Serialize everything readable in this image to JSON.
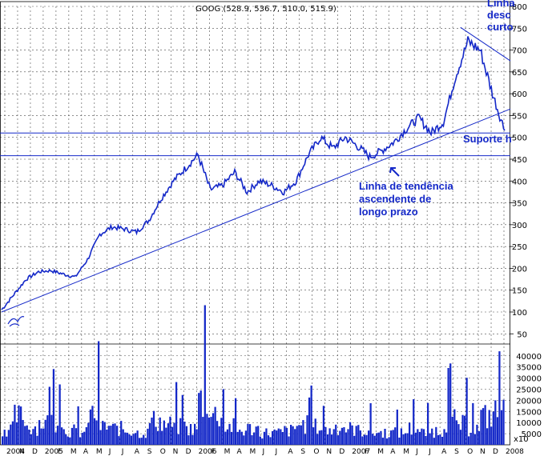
{
  "chart_data": {
    "type": "line",
    "title": "GOOG (528.9, 536.7, 510.0, 515.9)",
    "price_axis": {
      "ticks": [
        50,
        100,
        150,
        200,
        250,
        300,
        350,
        400,
        450,
        500,
        550,
        600,
        650,
        700,
        750,
        800
      ],
      "ylim": [
        40,
        800
      ]
    },
    "volume_axis": {
      "ticks": [
        5000,
        10000,
        15000,
        20000,
        25000,
        30000,
        35000,
        40000
      ],
      "ylim": [
        0,
        41000
      ],
      "bottom_label": "x10"
    },
    "x_labels": [
      "2004",
      "N",
      "D",
      "2005",
      "F",
      "M",
      "A",
      "M",
      "J",
      "J",
      "A",
      "S",
      "O",
      "N",
      "D",
      "2006",
      "F",
      "M",
      "A",
      "M",
      "J",
      "J",
      "A",
      "S",
      "O",
      "N",
      "D",
      "2007",
      "F",
      "M",
      "A",
      "M",
      "J",
      "J",
      "A",
      "S",
      "O",
      "N",
      "D",
      "2008"
    ],
    "price_series": [
      {
        "date": "2004-09",
        "close": 105
      },
      {
        "date": "2004-10",
        "close": 140
      },
      {
        "date": "2004-11",
        "close": 175
      },
      {
        "date": "2004-12",
        "close": 192
      },
      {
        "date": "2005-01",
        "close": 195
      },
      {
        "date": "2005-02",
        "close": 187
      },
      {
        "date": "2005-03",
        "close": 180
      },
      {
        "date": "2005-04",
        "close": 220
      },
      {
        "date": "2005-05",
        "close": 278
      },
      {
        "date": "2005-06",
        "close": 295
      },
      {
        "date": "2005-07",
        "close": 290
      },
      {
        "date": "2005-08",
        "close": 283
      },
      {
        "date": "2005-09",
        "close": 310
      },
      {
        "date": "2005-10",
        "close": 360
      },
      {
        "date": "2005-11",
        "close": 400
      },
      {
        "date": "2005-12",
        "close": 430
      },
      {
        "date": "2006-01",
        "close": 460
      },
      {
        "date": "2006-02",
        "close": 380
      },
      {
        "date": "2006-03",
        "close": 390
      },
      {
        "date": "2006-04",
        "close": 420
      },
      {
        "date": "2006-05",
        "close": 375
      },
      {
        "date": "2006-06",
        "close": 400
      },
      {
        "date": "2006-07",
        "close": 390
      },
      {
        "date": "2006-08",
        "close": 375
      },
      {
        "date": "2006-09",
        "close": 400
      },
      {
        "date": "2006-10",
        "close": 460
      },
      {
        "date": "2006-11",
        "close": 500
      },
      {
        "date": "2006-12",
        "close": 475
      },
      {
        "date": "2007-01",
        "close": 500
      },
      {
        "date": "2007-02",
        "close": 480
      },
      {
        "date": "2007-03",
        "close": 455
      },
      {
        "date": "2007-04",
        "close": 470
      },
      {
        "date": "2007-05",
        "close": 490
      },
      {
        "date": "2007-06",
        "close": 520
      },
      {
        "date": "2007-07",
        "close": 545
      },
      {
        "date": "2007-08",
        "close": 510
      },
      {
        "date": "2007-09",
        "close": 535
      },
      {
        "date": "2007-10",
        "close": 640
      },
      {
        "date": "2007-11",
        "close": 720
      },
      {
        "date": "2007-12",
        "close": 700
      },
      {
        "date": "2008-01",
        "close": 600
      },
      {
        "date": "2008-01-end",
        "close": 516
      }
    ],
    "volume_series": [
      8000,
      14000,
      9000,
      11000,
      12000,
      7000,
      6000,
      15000,
      9000,
      8000,
      7000,
      6000,
      12000,
      10000,
      9000,
      8000,
      22000,
      15000,
      9000,
      7000,
      8000,
      6000,
      6000,
      7000,
      10000,
      9000,
      7000,
      9000,
      8000,
      7000,
      6000,
      6000,
      6000,
      8000,
      6000,
      7000,
      12000,
      10000,
      8000,
      14000,
      16000
    ],
    "horizontal_lines": [
      510,
      458
    ],
    "trendline_up": {
      "from": {
        "date": "2004-09",
        "value": 100
      },
      "to": {
        "date": "2008-01",
        "value": 565
      }
    },
    "trendline_down": {
      "from": {
        "date": "2007-10",
        "value": 752
      },
      "to": {
        "date": "2008-01",
        "value": 690
      }
    },
    "annotations": {
      "top_right": [
        "Linha",
        "desc",
        "curto"
      ],
      "support": "Suporte h",
      "trend": [
        "Linha de tendência",
        "ascendente de",
        "longo prazo"
      ]
    },
    "grid": true,
    "colors": {
      "line": "#1428c8",
      "grid": "#4a4a4a",
      "annotation": "#1428c8",
      "background": "#ffffff"
    }
  }
}
